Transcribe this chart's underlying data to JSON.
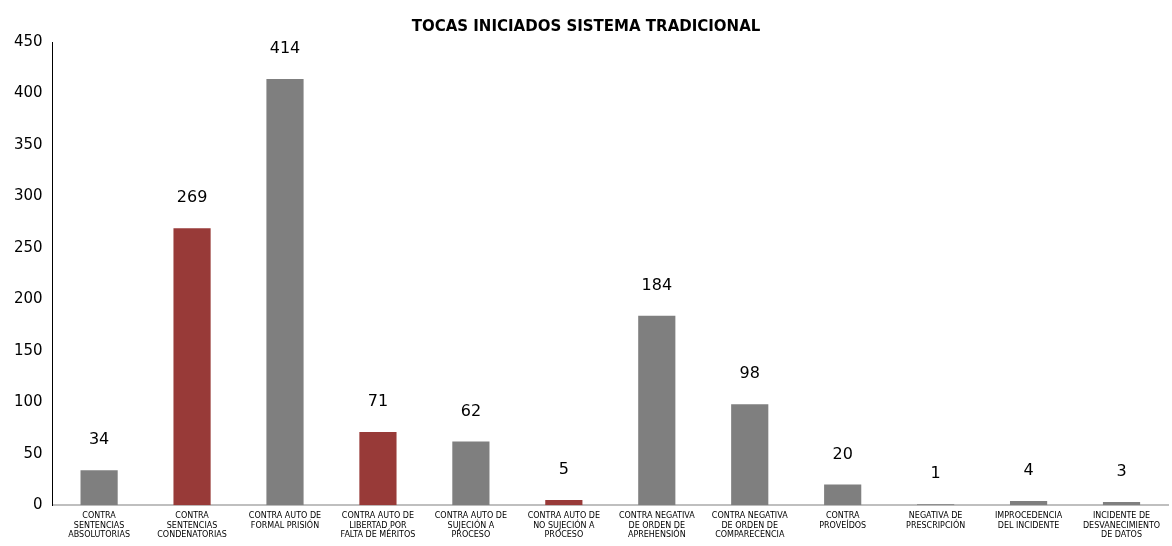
{
  "chart_data": {
    "type": "bar",
    "title": "TOCAS INICIADOS SISTEMA TRADICIONAL",
    "categories": [
      "CONTRA SENTENCIAS ABSOLUTORIAS",
      "CONTRA SENTENCIAS CONDENATORIAS",
      "CONTRA AUTO DE FORMAL PRISIÓN",
      "CONTRA AUTO DE LIBERTAD POR FALTA DE MÉRITOS",
      "CONTRA AUTO DE SUJECIÓN A PROCESO",
      "CONTRA AUTO DE NO SUJECIÓN A PROCESO",
      "CONTRA NEGATIVA DE ORDEN DE APREHENSIÓN",
      "CONTRA NEGATIVA DE ORDEN DE COMPARECENCIA",
      "CONTRA PROVEÍDOS",
      "NEGATIVA DE PRESCRIPCIÓN",
      "IMPROCEDENCIA DEL INCIDENTE",
      "INCIDENTE DE DESVANECIMIENTO DE DATOS"
    ],
    "values": [
      34,
      269,
      414,
      71,
      62,
      5,
      184,
      98,
      20,
      1,
      4,
      3
    ],
    "colors": [
      "#7f7f7f",
      "#983a38",
      "#7f7f7f",
      "#983a38",
      "#7f7f7f",
      "#983a38",
      "#7f7f7f",
      "#7f7f7f",
      "#7f7f7f",
      "#7f7f7f",
      "#7f7f7f",
      "#7f7f7f"
    ],
    "ylim": [
      0,
      450
    ],
    "yticks": [
      0,
      50,
      100,
      150,
      200,
      250,
      300,
      350,
      400,
      450
    ],
    "grid": false,
    "legend": false,
    "data_labels": true
  }
}
